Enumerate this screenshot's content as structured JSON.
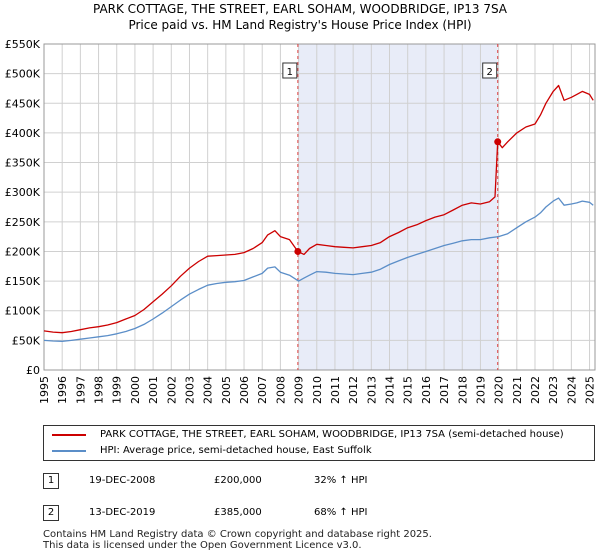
{
  "chart_data": {
    "type": "line",
    "title": "PARK COTTAGE, THE STREET, EARL SOHAM, WOODBRIDGE, IP13 7SA",
    "subtitle": "Price paid vs. HM Land Registry's House Price Index (HPI)",
    "xlabel": "",
    "ylabel": "",
    "xlim": [
      1995,
      2025.3
    ],
    "ylim": [
      0,
      550000
    ],
    "x_ticks": [
      "1995",
      "1996",
      "1997",
      "1998",
      "1999",
      "2000",
      "2001",
      "2002",
      "2003",
      "2004",
      "2005",
      "2006",
      "2007",
      "2008",
      "2009",
      "2010",
      "2011",
      "2012",
      "2013",
      "2014",
      "2015",
      "2016",
      "2017",
      "2018",
      "2019",
      "2020",
      "2021",
      "2022",
      "2023",
      "2024",
      "2025"
    ],
    "y_ticks": [
      "£0",
      "£50K",
      "£100K",
      "£150K",
      "£200K",
      "£250K",
      "£300K",
      "£350K",
      "£400K",
      "£450K",
      "£500K",
      "£550K"
    ],
    "shaded_region": {
      "from": 2008.96,
      "to": 2019.95
    },
    "markers": [
      {
        "label": "1",
        "x": 2008.96,
        "y": 200000
      },
      {
        "label": "2",
        "x": 2019.95,
        "y": 385000
      }
    ],
    "series": [
      {
        "name": "PARK COTTAGE, THE STREET, EARL SOHAM, WOODBRIDGE, IP13 7SA (semi-detached house)",
        "color": "#cc0000",
        "x": [
          1995,
          1995.5,
          1996,
          1996.5,
          1997,
          1997.5,
          1998,
          1998.5,
          1999,
          1999.5,
          2000,
          2000.5,
          2001,
          2001.5,
          2002,
          2002.5,
          2003,
          2003.5,
          2004,
          2004.5,
          2005,
          2005.5,
          2006,
          2006.5,
          2007,
          2007.3,
          2007.7,
          2008,
          2008.5,
          2008.96,
          2009.3,
          2009.6,
          2010,
          2010.5,
          2011,
          2011.5,
          2012,
          2012.5,
          2013,
          2013.5,
          2014,
          2014.5,
          2015,
          2015.5,
          2016,
          2016.5,
          2017,
          2017.5,
          2018,
          2018.5,
          2019,
          2019.5,
          2019.8,
          2019.95,
          2020.2,
          2020.5,
          2021,
          2021.5,
          2022,
          2022.3,
          2022.6,
          2023,
          2023.3,
          2023.6,
          2024,
          2024.3,
          2024.6,
          2025,
          2025.2
        ],
        "y": [
          66000,
          64000,
          63000,
          65000,
          68000,
          71000,
          73000,
          76000,
          80000,
          86000,
          92000,
          102000,
          115000,
          128000,
          142000,
          158000,
          172000,
          183000,
          192000,
          193000,
          194000,
          195000,
          198000,
          205000,
          215000,
          228000,
          235000,
          225000,
          220000,
          200000,
          195000,
          205000,
          212000,
          210000,
          208000,
          207000,
          206000,
          208000,
          210000,
          215000,
          225000,
          232000,
          240000,
          245000,
          252000,
          258000,
          262000,
          270000,
          278000,
          282000,
          280000,
          284000,
          292000,
          385000,
          375000,
          385000,
          400000,
          410000,
          415000,
          430000,
          450000,
          470000,
          480000,
          455000,
          460000,
          465000,
          470000,
          465000,
          455000
        ]
      },
      {
        "name": "HPI: Average price, semi-detached house, East Suffolk",
        "color": "#5b8ec8",
        "x": [
          1995,
          1995.5,
          1996,
          1996.5,
          1997,
          1997.5,
          1998,
          1998.5,
          1999,
          1999.5,
          2000,
          2000.5,
          2001,
          2001.5,
          2002,
          2002.5,
          2003,
          2003.5,
          2004,
          2004.5,
          2005,
          2005.5,
          2006,
          2006.5,
          2007,
          2007.3,
          2007.7,
          2008,
          2008.5,
          2009,
          2009.3,
          2009.6,
          2010,
          2010.5,
          2011,
          2011.5,
          2012,
          2012.5,
          2013,
          2013.5,
          2014,
          2014.5,
          2015,
          2015.5,
          2016,
          2016.5,
          2017,
          2017.5,
          2018,
          2018.5,
          2019,
          2019.5,
          2020,
          2020.5,
          2021,
          2021.5,
          2022,
          2022.3,
          2022.6,
          2023,
          2023.3,
          2023.6,
          2024,
          2024.3,
          2024.6,
          2025,
          2025.2
        ],
        "y": [
          50000,
          49000,
          48500,
          50000,
          52000,
          54000,
          56000,
          58000,
          61000,
          65000,
          70000,
          77000,
          86000,
          96000,
          107000,
          118000,
          128000,
          136000,
          143000,
          146000,
          148000,
          149000,
          151000,
          157000,
          163000,
          172000,
          174000,
          165000,
          160000,
          150000,
          155000,
          160000,
          166000,
          165000,
          163000,
          162000,
          161000,
          163000,
          165000,
          170000,
          178000,
          184000,
          190000,
          195000,
          200000,
          205000,
          210000,
          214000,
          218000,
          220000,
          220000,
          223000,
          225000,
          230000,
          240000,
          250000,
          258000,
          265000,
          275000,
          285000,
          290000,
          278000,
          280000,
          282000,
          285000,
          283000,
          278000
        ]
      }
    ]
  },
  "legend": {
    "items": [
      {
        "label": "PARK COTTAGE, THE STREET, EARL SOHAM, WOODBRIDGE, IP13 7SA (semi-detached house)",
        "color": "#cc0000"
      },
      {
        "label": "HPI: Average price, semi-detached house, East Suffolk",
        "color": "#5b8ec8"
      }
    ]
  },
  "transactions": [
    {
      "num": "1",
      "date": "19-DEC-2008",
      "price": "£200,000",
      "change": "32% ↑ HPI"
    },
    {
      "num": "2",
      "date": "13-DEC-2019",
      "price": "£385,000",
      "change": "68% ↑ HPI"
    }
  ],
  "footer": {
    "line1": "Contains HM Land Registry data © Crown copyright and database right 2025.",
    "line2": "This data is licensed under the Open Government Licence v3.0."
  }
}
